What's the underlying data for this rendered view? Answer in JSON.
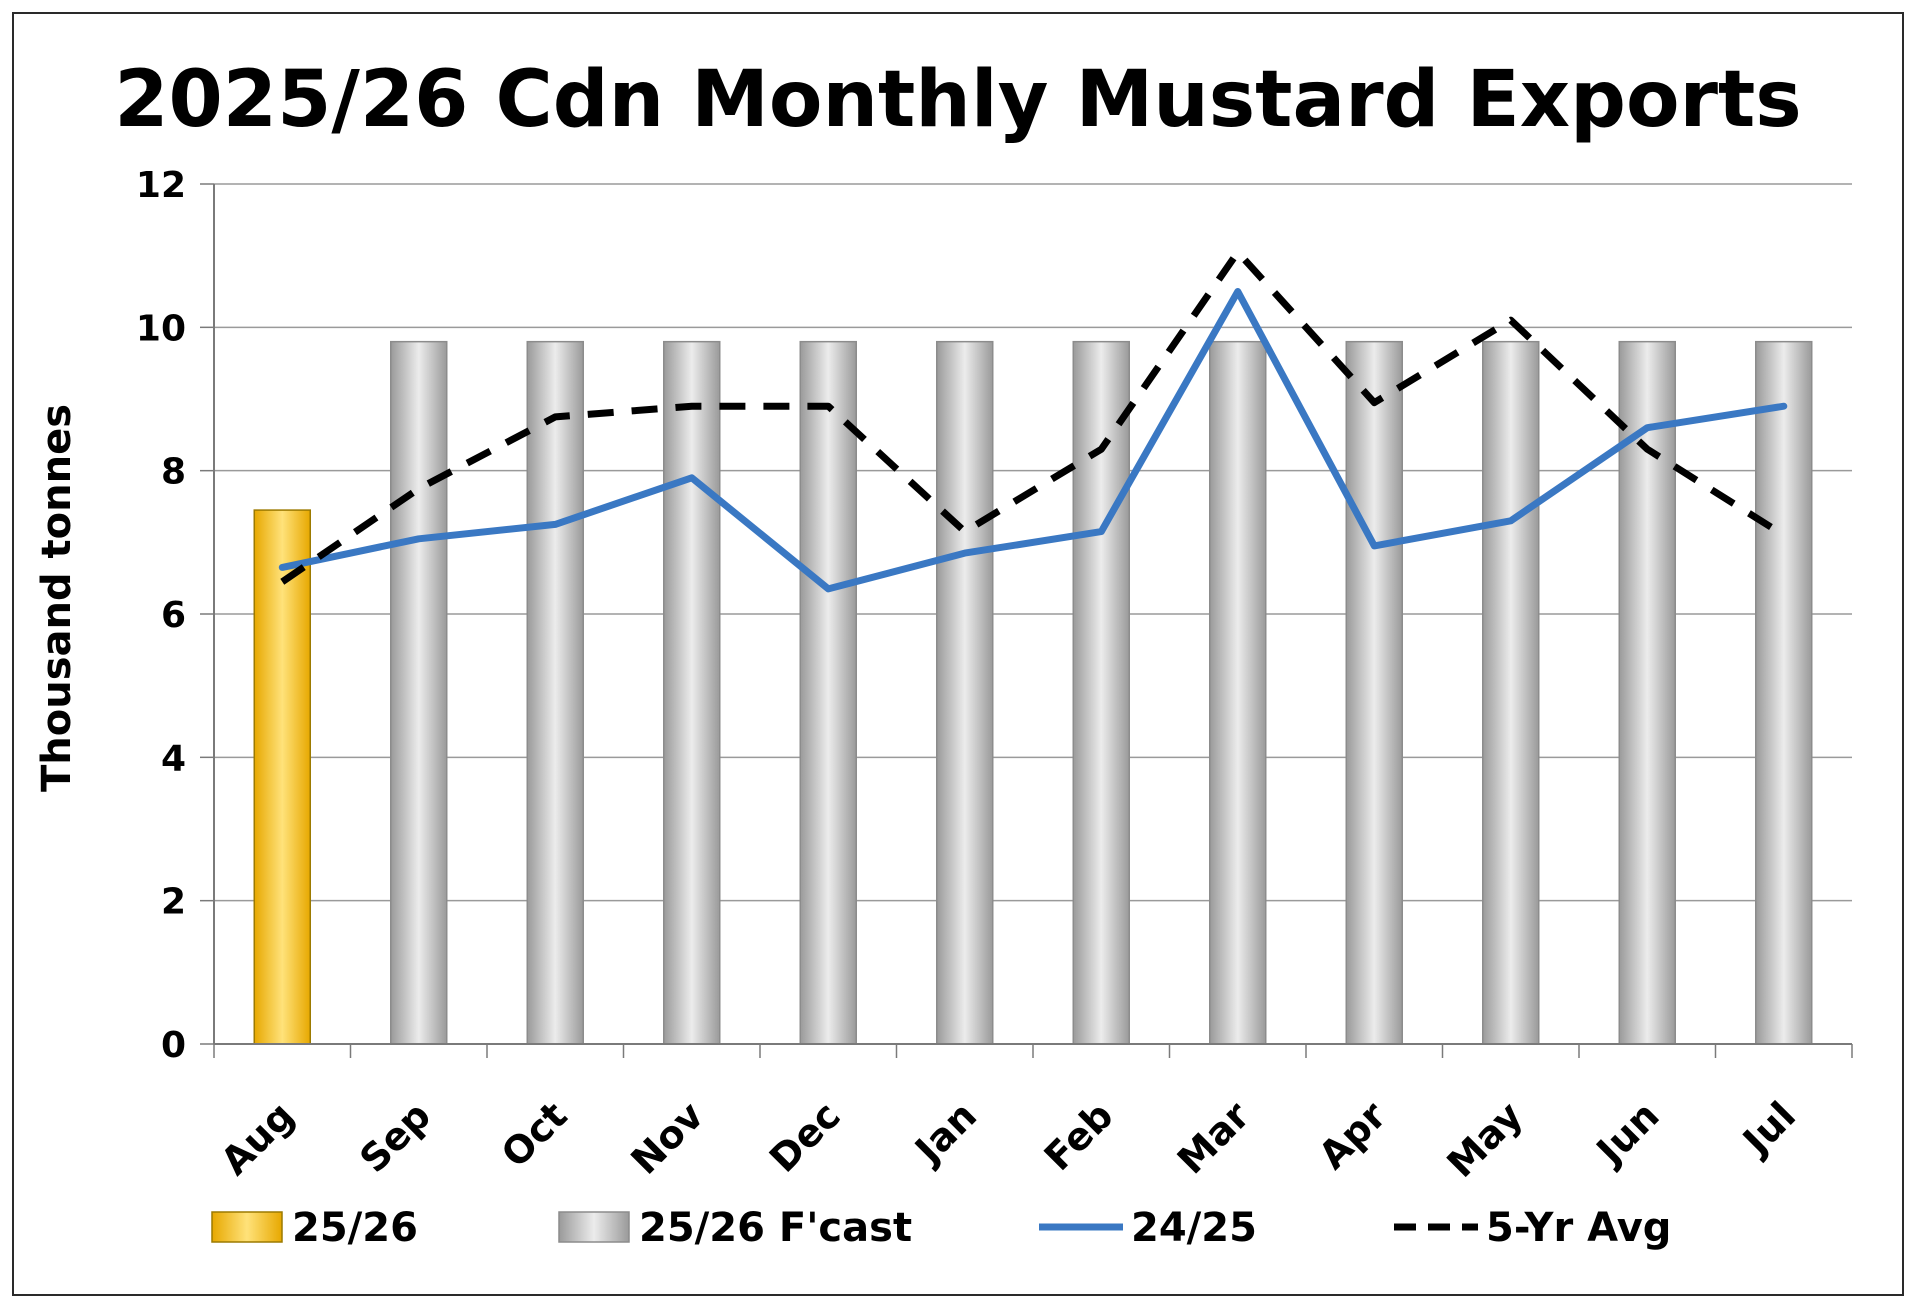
{
  "chart_data": {
    "type": "bar",
    "title": "2025/26 Cdn Monthly Mustard Exports",
    "ylabel": "Thousand tonnes",
    "xlabel": "",
    "ylim": [
      0,
      12
    ],
    "yticks": [
      0,
      2,
      4,
      6,
      8,
      10,
      12
    ],
    "grid": true,
    "legend_position": "bottom",
    "categories": [
      "Aug",
      "Sep",
      "Oct",
      "Nov",
      "Dec",
      "Jan",
      "Feb",
      "Mar",
      "Apr",
      "May",
      "Jun",
      "Jul"
    ],
    "series": [
      {
        "name": "25/26",
        "kind": "bar",
        "color": "#f4c430",
        "values": [
          7.45,
          null,
          null,
          null,
          null,
          null,
          null,
          null,
          null,
          null,
          null,
          null
        ]
      },
      {
        "name": "25/26 F'cast",
        "kind": "bar",
        "color": "#c8c8c8",
        "values": [
          null,
          9.8,
          9.8,
          9.8,
          9.8,
          9.8,
          9.8,
          9.8,
          9.8,
          9.8,
          9.8,
          9.8
        ]
      },
      {
        "name": "24/25",
        "kind": "line",
        "style": "solid",
        "color": "#3a78c3",
        "values": [
          6.65,
          7.05,
          7.25,
          7.9,
          6.35,
          6.85,
          7.15,
          10.5,
          6.95,
          7.3,
          8.6,
          8.9
        ]
      },
      {
        "name": "5-Yr Avg",
        "kind": "line",
        "style": "dashed",
        "color": "#000000",
        "values": [
          6.45,
          7.75,
          8.75,
          8.9,
          8.9,
          7.15,
          8.3,
          11.05,
          8.95,
          10.1,
          8.3,
          7.1
        ]
      }
    ]
  }
}
